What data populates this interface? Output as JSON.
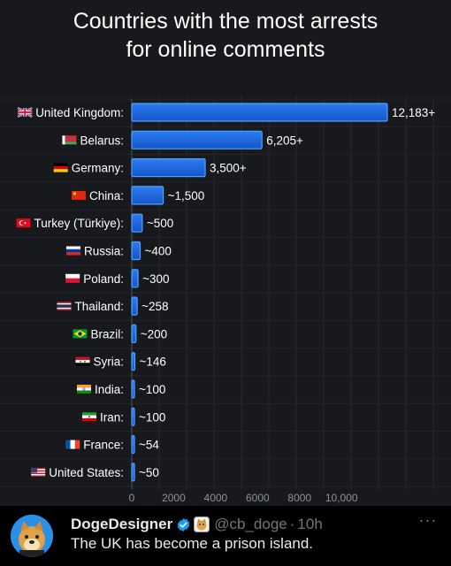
{
  "chart_data": {
    "type": "bar",
    "orientation": "horizontal",
    "title": "Countries with the most arrests for online comments",
    "title_lines": [
      "Countries with the most arrests",
      "for online comments"
    ],
    "categories": [
      "United Kingdom:",
      "Belarus:",
      "Germany:",
      "China:",
      "Turkey (Türkiye):",
      "Russia:",
      "Poland:",
      "Thailand:",
      "Brazil:",
      "Syria:",
      "India:",
      "Iran:",
      "France:",
      "United States:"
    ],
    "values": [
      12183,
      6205,
      3500,
      1500,
      500,
      400,
      300,
      258,
      200,
      146,
      100,
      100,
      54,
      50
    ],
    "data_labels": [
      "12,183+",
      "6,205+",
      "3,500+",
      "~1,500",
      "~500",
      "~400",
      "~300",
      "~258",
      "~200",
      "~146",
      "~100",
      "~100",
      "~54",
      "~50"
    ],
    "flags": [
      "uk-flag",
      "belarus-flag",
      "germany-flag",
      "china-flag",
      "turkey-flag",
      "russia-flag",
      "poland-flag",
      "thailand-flag",
      "brazil-flag",
      "syria-flag",
      "india-flag",
      "iran-flag",
      "france-flag",
      "usa-flag"
    ],
    "x_ticks": [
      "0",
      "2000",
      "4000",
      "6000",
      "8000",
      "10,000"
    ],
    "x_tick_values": [
      0,
      2000,
      4000,
      6000,
      8000,
      10000
    ],
    "xlim": [
      0,
      12183
    ],
    "grid": true,
    "bar_color": "#1f6fe0",
    "bar_edge_color": "#4fa3ff"
  },
  "tweet": {
    "display_name": "DogeDesigner",
    "handle": "@cb_doge",
    "separator": "·",
    "time": "10h",
    "text": "The UK has become a prison island.",
    "verified_icon": "verified-badge-icon",
    "affiliate_icon": "doge-badge-icon",
    "more_icon": "more-options-icon",
    "more_label": "···"
  }
}
